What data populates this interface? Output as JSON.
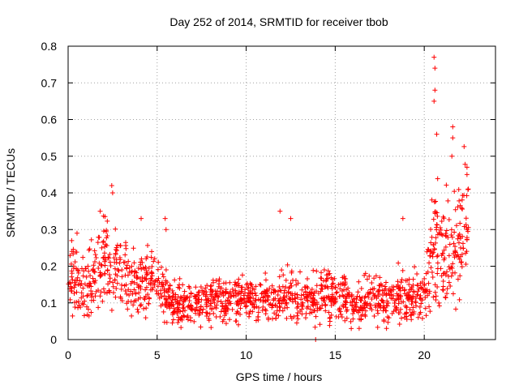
{
  "chart_data": {
    "type": "scatter",
    "title": "Day 252 of 2014, SRMTID for receiver tbob",
    "xlabel": "GPS time / hours",
    "ylabel": "SRMTID / TECUs",
    "xlim": [
      0,
      24
    ],
    "ylim": [
      0,
      0.8
    ],
    "xticks": [
      0,
      5,
      10,
      15,
      20
    ],
    "yticks": [
      0,
      0.1,
      0.2,
      0.3,
      0.4,
      0.5,
      0.6,
      0.7,
      0.8
    ],
    "grid": true,
    "marker": "+",
    "color": "#ff0000",
    "series": [
      {
        "name": "SRMTID",
        "envelope_note": "approximate hourly mean level estimated from the figure",
        "envelope": [
          [
            0.0,
            0.16
          ],
          [
            0.5,
            0.17
          ],
          [
            1.0,
            0.15
          ],
          [
            1.5,
            0.16
          ],
          [
            2.0,
            0.22
          ],
          [
            2.5,
            0.2
          ],
          [
            3.0,
            0.19
          ],
          [
            3.5,
            0.17
          ],
          [
            4.0,
            0.15
          ],
          [
            4.5,
            0.17
          ],
          [
            5.0,
            0.15
          ],
          [
            5.5,
            0.12
          ],
          [
            6.0,
            0.1
          ],
          [
            6.5,
            0.1
          ],
          [
            7.0,
            0.1
          ],
          [
            7.5,
            0.1
          ],
          [
            8.0,
            0.1
          ],
          [
            8.5,
            0.12
          ],
          [
            9.0,
            0.1
          ],
          [
            9.5,
            0.12
          ],
          [
            10.0,
            0.11
          ],
          [
            10.5,
            0.1
          ],
          [
            11.0,
            0.11
          ],
          [
            11.5,
            0.1
          ],
          [
            12.0,
            0.12
          ],
          [
            12.5,
            0.12
          ],
          [
            13.0,
            0.11
          ],
          [
            13.5,
            0.11
          ],
          [
            14.0,
            0.12
          ],
          [
            14.5,
            0.13
          ],
          [
            15.0,
            0.12
          ],
          [
            15.5,
            0.11
          ],
          [
            16.0,
            0.09
          ],
          [
            16.5,
            0.1
          ],
          [
            17.0,
            0.11
          ],
          [
            17.5,
            0.12
          ],
          [
            18.0,
            0.1
          ],
          [
            18.5,
            0.12
          ],
          [
            19.0,
            0.11
          ],
          [
            19.5,
            0.12
          ],
          [
            20.0,
            0.12
          ],
          [
            20.5,
            0.25
          ],
          [
            21.0,
            0.26
          ],
          [
            21.5,
            0.22
          ],
          [
            22.0,
            0.28
          ],
          [
            22.5,
            0.3
          ]
        ],
        "highlights": [
          [
            0.2,
            0.27
          ],
          [
            0.5,
            0.29
          ],
          [
            1.8,
            0.35
          ],
          [
            2.45,
            0.42
          ],
          [
            2.5,
            0.4
          ],
          [
            4.1,
            0.33
          ],
          [
            5.45,
            0.33
          ],
          [
            5.5,
            0.3
          ],
          [
            11.9,
            0.35
          ],
          [
            12.5,
            0.33
          ],
          [
            18.8,
            0.33
          ],
          [
            20.55,
            0.77
          ],
          [
            20.6,
            0.74
          ],
          [
            20.6,
            0.68
          ],
          [
            20.55,
            0.65
          ],
          [
            20.7,
            0.56
          ],
          [
            21.6,
            0.58
          ],
          [
            21.6,
            0.55
          ],
          [
            21.55,
            0.5
          ],
          [
            22.4,
            0.47
          ],
          [
            22.4,
            0.45
          ],
          [
            13.9,
            0.0
          ],
          [
            15.9,
            0.03
          ]
        ]
      }
    ]
  }
}
